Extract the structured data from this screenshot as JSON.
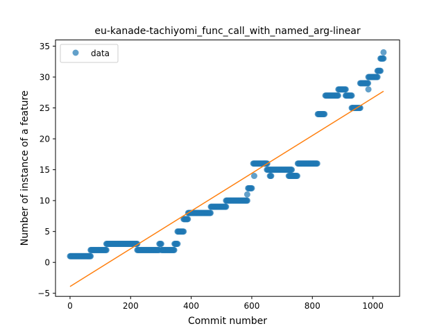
{
  "chart_data": {
    "type": "scatter",
    "title": "eu-kanade-tachiyomi_func_call_with_named_arg-linear",
    "xlabel": "Commit number",
    "ylabel": "Number of instance of a feature",
    "xlim": [
      -48,
      1088
    ],
    "ylim": [
      -5.5,
      36
    ],
    "xticks": [
      0,
      200,
      400,
      600,
      800,
      1000
    ],
    "yticks": [
      -5,
      0,
      5,
      10,
      15,
      20,
      25,
      30,
      35
    ],
    "legend": {
      "position": "top-left",
      "entries": [
        "data"
      ]
    },
    "colors": {
      "data": "#1f77b4",
      "fit": "#ff7f0e"
    },
    "series": [
      {
        "name": "data",
        "kind": "scatter",
        "segments": [
          {
            "x0": 0,
            "x1": 68,
            "y": 1
          },
          {
            "x0": 68,
            "x1": 120,
            "y": 2
          },
          {
            "x0": 120,
            "x1": 222,
            "y": 3
          },
          {
            "x0": 222,
            "x1": 295,
            "y": 2
          },
          {
            "x0": 295,
            "x1": 302,
            "y": 3
          },
          {
            "x0": 302,
            "x1": 345,
            "y": 2
          },
          {
            "x0": 345,
            "x1": 355,
            "y": 3
          },
          {
            "x0": 355,
            "x1": 375,
            "y": 5
          },
          {
            "x0": 375,
            "x1": 390,
            "y": 7
          },
          {
            "x0": 390,
            "x1": 465,
            "y": 8
          },
          {
            "x0": 465,
            "x1": 515,
            "y": 9
          },
          {
            "x0": 515,
            "x1": 585,
            "y": 10
          },
          {
            "x0": 588,
            "x1": 600,
            "y": 12
          },
          {
            "x0": 605,
            "x1": 652,
            "y": 16
          },
          {
            "x0": 650,
            "x1": 732,
            "y": 15
          },
          {
            "x0": 660,
            "x1": 665,
            "y": 14
          },
          {
            "x0": 722,
            "x1": 750,
            "y": 14
          },
          {
            "x0": 752,
            "x1": 817,
            "y": 16
          },
          {
            "x0": 818,
            "x1": 840,
            "y": 24
          },
          {
            "x0": 843,
            "x1": 886,
            "y": 27
          },
          {
            "x0": 886,
            "x1": 910,
            "y": 28
          },
          {
            "x0": 910,
            "x1": 930,
            "y": 27
          },
          {
            "x0": 930,
            "x1": 958,
            "y": 25
          },
          {
            "x0": 958,
            "x1": 985,
            "y": 29
          },
          {
            "x0": 985,
            "x1": 1015,
            "y": 30
          },
          {
            "x0": 1015,
            "x1": 1025,
            "y": 31
          },
          {
            "x0": 1025,
            "x1": 1035,
            "y": 33
          }
        ],
        "points": [
          {
            "x": 585,
            "y": 11
          },
          {
            "x": 608,
            "y": 14
          },
          {
            "x": 985,
            "y": 28
          },
          {
            "x": 1035,
            "y": 34
          }
        ]
      },
      {
        "name": "fit",
        "kind": "line",
        "x": [
          0,
          1035
        ],
        "y": [
          -3.9,
          27.7
        ]
      }
    ]
  }
}
